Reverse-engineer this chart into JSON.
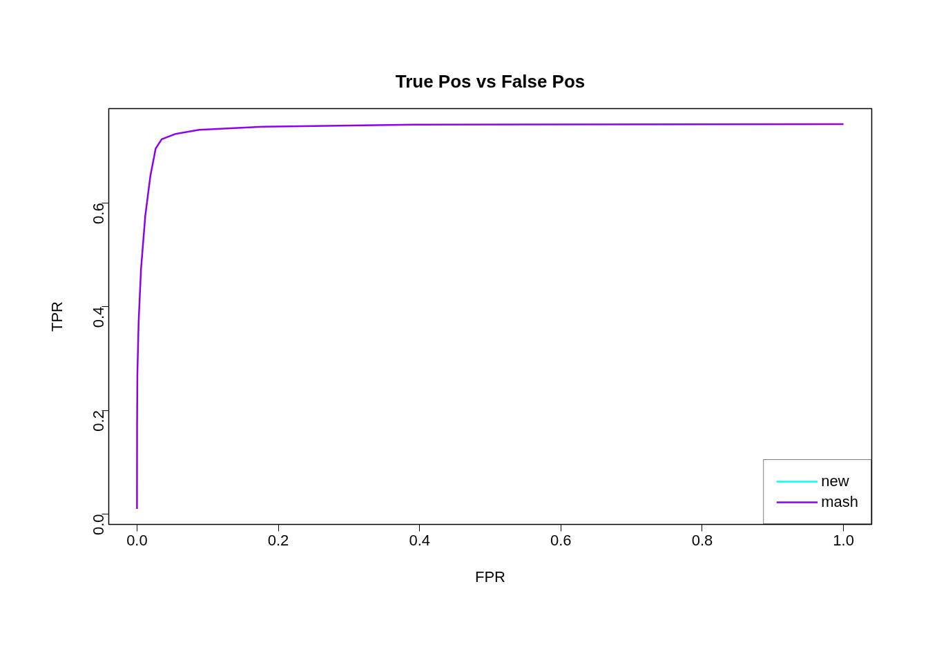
{
  "chart_data": {
    "type": "line",
    "title": "True Pos vs False Pos",
    "xlabel": "FPR",
    "ylabel": "TPR",
    "x": [
      0.0,
      0.0001,
      0.0005,
      0.0023,
      0.0057,
      0.0117,
      0.0189,
      0.0264,
      0.035,
      0.054,
      0.088,
      0.178,
      0.393,
      1.0
    ],
    "series": [
      {
        "name": "new",
        "color": "#00ffff",
        "values": [
          null,
          null,
          null,
          null,
          null,
          null,
          null,
          null,
          null,
          null,
          null,
          null,
          null,
          null
        ]
      },
      {
        "name": "mash",
        "color": "#8b00ee",
        "values": [
          0.01,
          0.168,
          0.269,
          0.371,
          0.473,
          0.575,
          0.652,
          0.705,
          0.723,
          0.733,
          0.741,
          0.747,
          0.751,
          0.752
        ]
      }
    ],
    "xlim": [
      -0.04,
      1.04
    ],
    "ylim": [
      -0.02,
      0.782
    ],
    "xticks": [
      {
        "value": 0.0,
        "label": "0.0"
      },
      {
        "value": 0.2,
        "label": "0.2"
      },
      {
        "value": 0.4,
        "label": "0.4"
      },
      {
        "value": 0.6,
        "label": "0.6"
      },
      {
        "value": 0.8,
        "label": "0.8"
      },
      {
        "value": 1.0,
        "label": "1.0"
      }
    ],
    "yticks": [
      {
        "value": 0,
        "label": "0.0"
      },
      0.2,
      0.4,
      0.6
    ],
    "legend": "bottom right",
    "grid": false,
    "line_style": "solid"
  }
}
